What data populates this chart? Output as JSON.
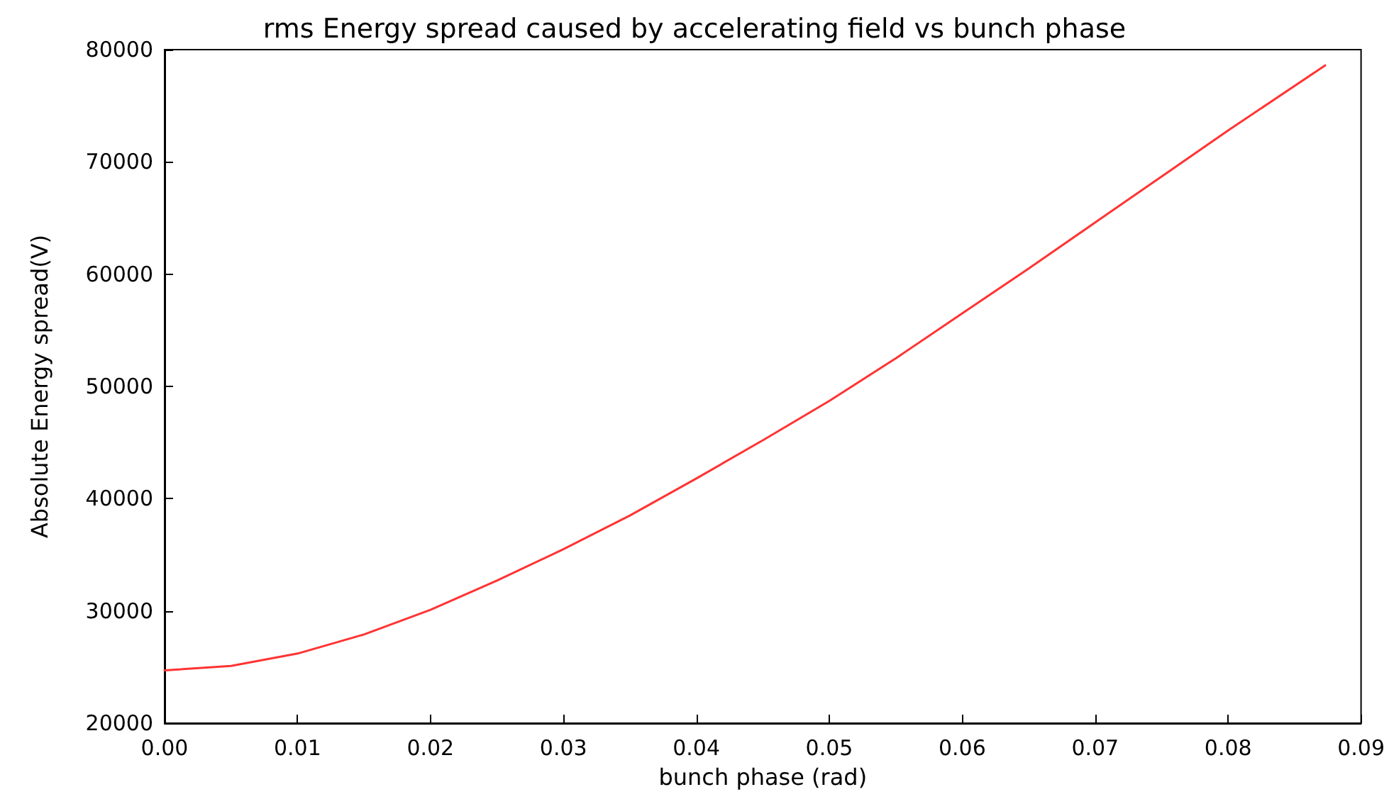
{
  "chart_data": {
    "type": "line",
    "title": "rms Energy spread caused by accelerating field vs bunch phase",
    "xlabel": "bunch phase (rad)",
    "ylabel": "Absolute Energy spread(V)",
    "series": [
      {
        "color": "#ff3333",
        "x": [
          0,
          0.005,
          0.01,
          0.015,
          0.02,
          0.025,
          0.03,
          0.035,
          0.04,
          0.045,
          0.05,
          0.055,
          0.06,
          0.065,
          0.07,
          0.075,
          0.08,
          0.0873
        ],
        "values": [
          24700,
          25100,
          26200,
          27900,
          30100,
          32700,
          35500,
          38500,
          41800,
          45200,
          48700,
          52500,
          56500,
          60500,
          64600,
          68700,
          72800,
          78600
        ]
      }
    ],
    "xlim": [
      0,
      0.09
    ],
    "xticks": [
      {
        "value": 0,
        "label": "0.00"
      },
      0.01,
      0.02,
      0.03,
      0.04,
      0.05,
      0.06,
      0.07,
      0.08,
      0.09
    ],
    "ylim": [
      20000,
      80000
    ],
    "yticks": [
      20000,
      30000,
      40000,
      50000,
      60000,
      70000,
      80000
    ],
    "grid": false,
    "marker": "none",
    "line_style": "solid"
  }
}
